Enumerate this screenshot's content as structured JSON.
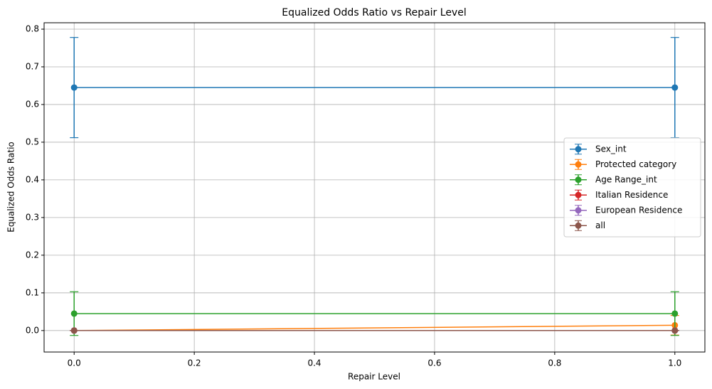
{
  "chart_data": {
    "type": "line",
    "title": "Equalized Odds Ratio vs Repair Level",
    "x_label": "Repair Level",
    "y_label": "Equalized Odds Ratio",
    "x": [
      0.0,
      1.0
    ],
    "series": [
      {
        "name": "Sex_int",
        "color": "#1f77b4",
        "values": [
          0.645,
          0.645
        ],
        "errors": [
          0.133,
          0.133
        ]
      },
      {
        "name": "Protected category",
        "color": "#ff7f0e",
        "values": [
          0.0,
          0.014
        ],
        "errors": [
          0.0,
          0.026
        ]
      },
      {
        "name": "Age Range_int",
        "color": "#2ca02c",
        "values": [
          0.045,
          0.045
        ],
        "errors": [
          0.058,
          0.058
        ]
      },
      {
        "name": "Italian Residence",
        "color": "#d62728",
        "values": [
          0.0,
          0.0
        ],
        "errors": [
          0.0,
          0.0
        ]
      },
      {
        "name": "European Residence",
        "color": "#9467bd",
        "values": [
          0.0,
          0.0
        ],
        "errors": [
          0.0,
          0.0
        ]
      },
      {
        "name": "all",
        "color": "#8c564b",
        "values": [
          0.0,
          0.0
        ],
        "errors": [
          0.0,
          0.0
        ]
      }
    ],
    "xlim": [
      -0.05,
      1.05
    ],
    "ylim": [
      -0.057,
      0.817
    ],
    "xticks": [
      {
        "value": 0.0,
        "label": "0.0"
      },
      0.2,
      0.4,
      0.6,
      0.8,
      {
        "value": 1.0,
        "label": "1.0"
      }
    ],
    "yticks": [
      {
        "value": 0.0,
        "label": "0.0"
      },
      0.1,
      0.2,
      0.3,
      0.4,
      0.5,
      0.6,
      0.7,
      0.8
    ],
    "grid": true,
    "legend": "center right"
  }
}
